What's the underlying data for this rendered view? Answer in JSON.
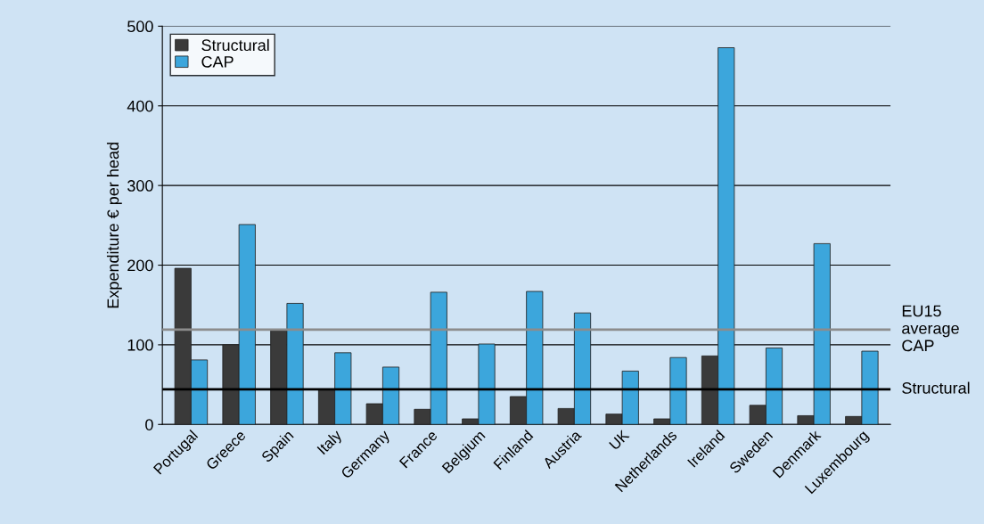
{
  "chart_data": {
    "type": "bar",
    "ylabel": "Expenditure € per head",
    "categories": [
      "Portugal",
      "Greece",
      "Spain",
      "Italy",
      "Germany",
      "France",
      "Belgium",
      "Finland",
      "Austria",
      "UK",
      "Netherlands",
      "Ireland",
      "Sweden",
      "Denmark",
      "Luxembourg"
    ],
    "series": [
      {
        "name": "Structural",
        "color": "#3a3a3a",
        "values": [
          196,
          100,
          118,
          44,
          26,
          19,
          7,
          35,
          20,
          13,
          7,
          86,
          24,
          11,
          10
        ]
      },
      {
        "name": "CAP",
        "color": "#3ca6dc",
        "values": [
          81,
          251,
          152,
          90,
          72,
          166,
          101,
          167,
          140,
          67,
          84,
          473,
          96,
          227,
          92
        ]
      }
    ],
    "ylim": [
      0,
      500
    ],
    "yticks": [
      0,
      100,
      200,
      300,
      400,
      500
    ],
    "grid": "y",
    "legend": "top left",
    "ref_lines": [
      {
        "axis": "y",
        "value": 119,
        "label": "EU15\naverage\nCAP",
        "color": "#8c8c8c"
      },
      {
        "axis": "y",
        "value": 44,
        "label": "Structural",
        "color": "#000000"
      }
    ]
  }
}
